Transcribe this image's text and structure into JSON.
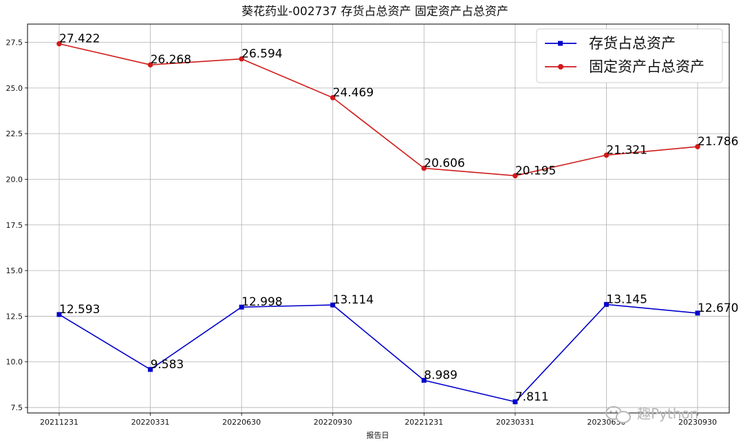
{
  "watermark": {
    "icon": "wechat-icon",
    "text": "趣Python"
  },
  "chart_data": {
    "type": "line",
    "title": "葵花药业-002737 存货占总资产 固定资产占总资产",
    "xlabel": "报告日",
    "ylabel": "",
    "categories": [
      "20211231",
      "20220331",
      "20220630",
      "20220930",
      "20221231",
      "20230331",
      "20230630",
      "20230930"
    ],
    "ylim": [
      7.2,
      28.5
    ],
    "yticks": [
      "7.5",
      "10.0",
      "12.5",
      "15.0",
      "17.5",
      "20.0",
      "22.5",
      "25.0",
      "27.5"
    ],
    "grid": true,
    "legend_position": "top-right",
    "series": [
      {
        "name": "存货占总资产",
        "color": "#0000cc",
        "marker": "square",
        "values": [
          12.593,
          9.583,
          12.998,
          13.114,
          8.989,
          7.811,
          13.145,
          12.67
        ],
        "labels": [
          "12.593",
          "9.583",
          "12.998",
          "13.114",
          "8.989",
          "7.811",
          "13.145",
          "12.670"
        ]
      },
      {
        "name": "固定资产占总资产",
        "color": "#d11a1a",
        "marker": "circle",
        "values": [
          27.422,
          26.268,
          26.594,
          24.469,
          20.606,
          20.195,
          21.321,
          21.786
        ],
        "labels": [
          "27.422",
          "26.268",
          "26.594",
          "24.469",
          "20.606",
          "20.195",
          "21.321",
          "21.786"
        ]
      }
    ]
  }
}
